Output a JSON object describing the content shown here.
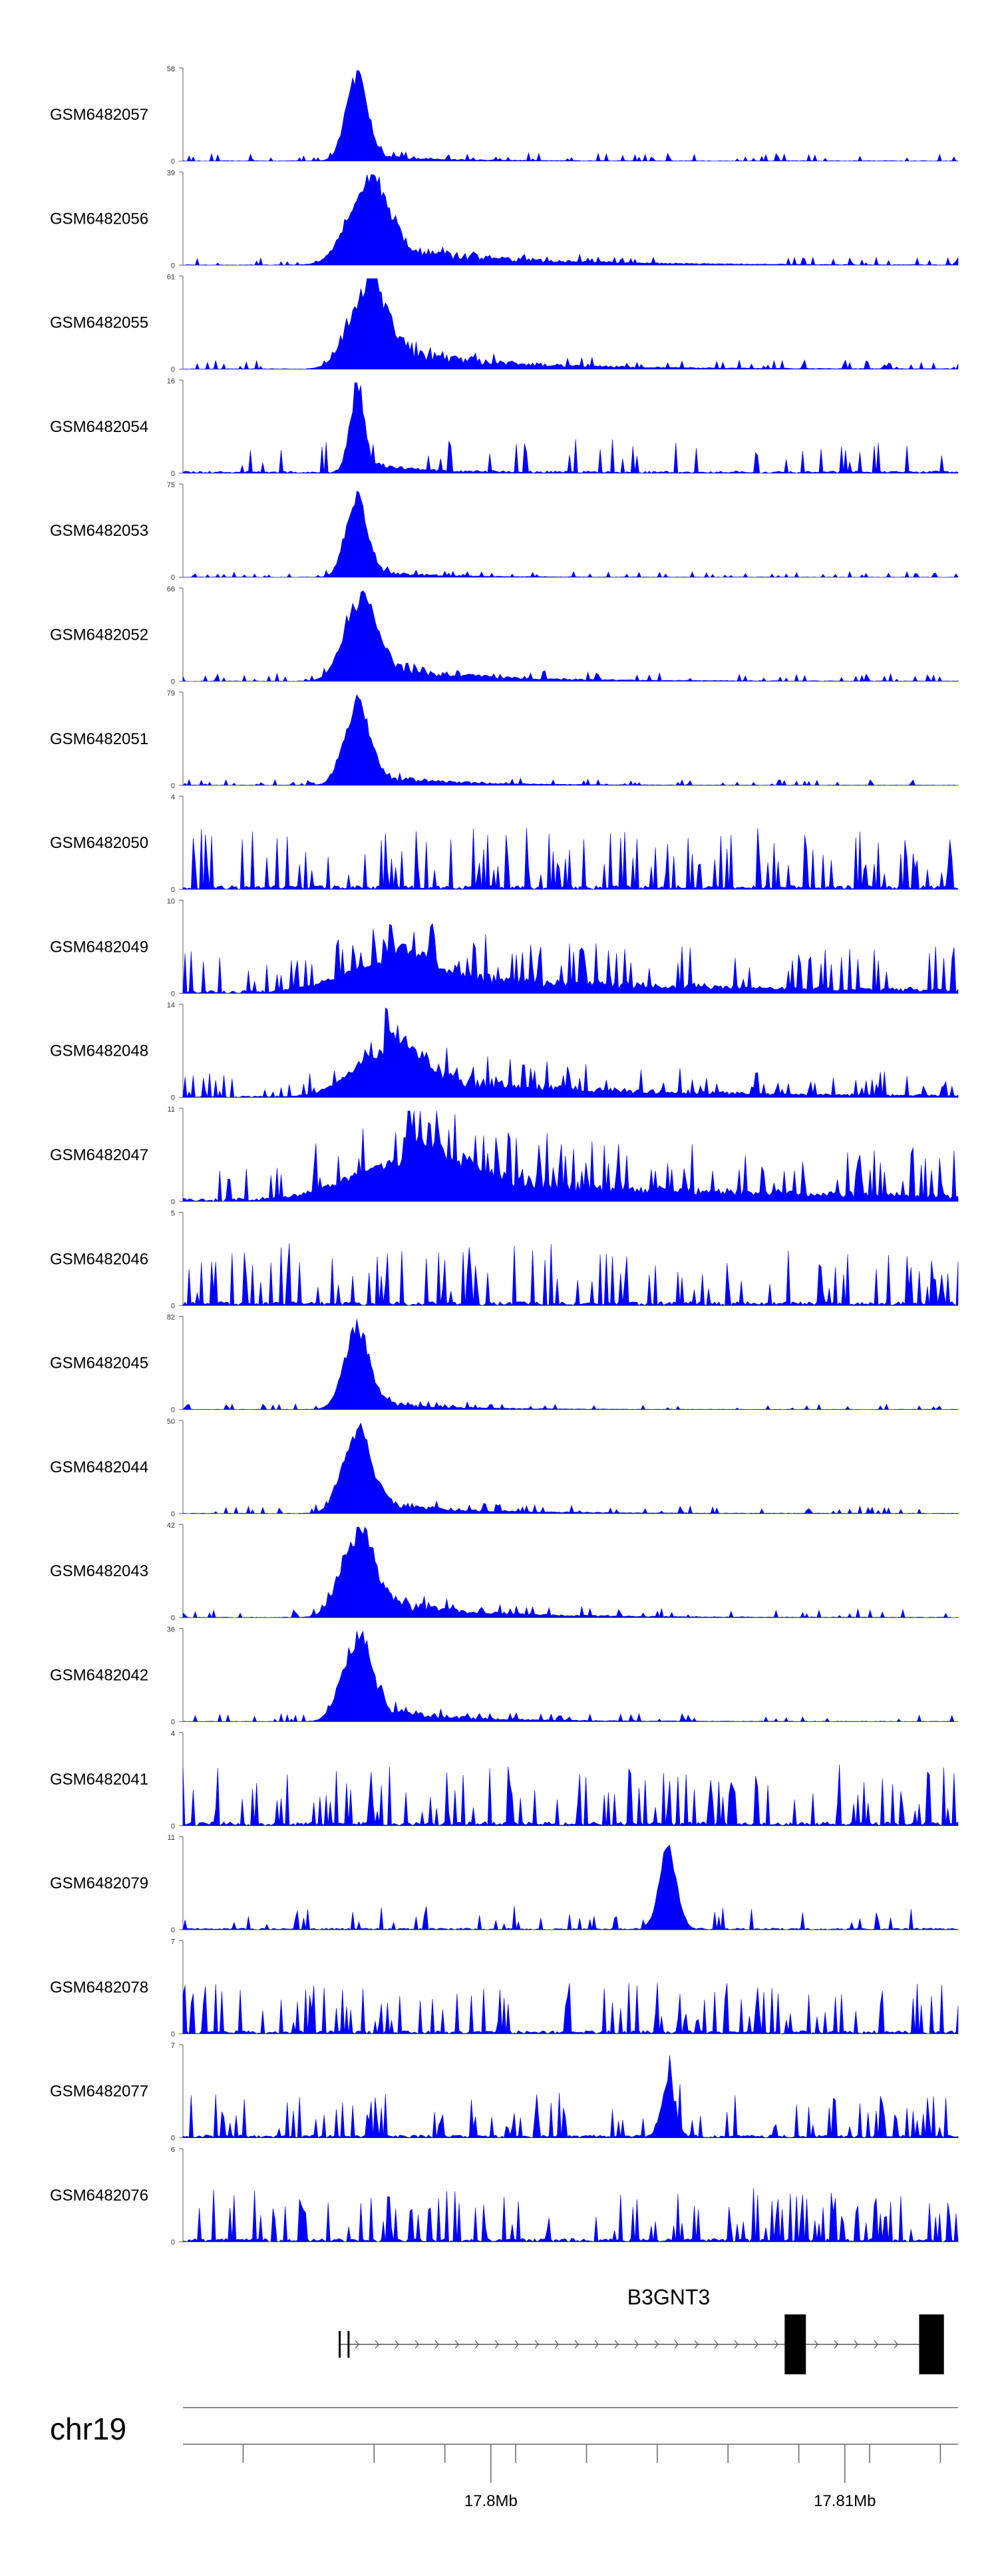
{
  "chart_data": {
    "type": "area",
    "title": "",
    "chromosome": "chr19",
    "series_color": "#0000ff",
    "gene": {
      "name": "B3GNT3",
      "strand": "+",
      "start_mb": 17.7957,
      "end_mb": 17.8121,
      "exons": [
        {
          "start_mb": 17.7957,
          "end_mb": 17.79575
        },
        {
          "start_mb": 17.79595,
          "end_mb": 17.796
        },
        {
          "start_mb": 17.8083,
          "end_mb": 17.8089
        },
        {
          "start_mb": 17.8121,
          "end_mb": 17.8128
        }
      ]
    },
    "xaxis": {
      "range_mb": [
        17.7913,
        17.8132
      ],
      "minor_ticks_mb": [
        17.793,
        17.7967,
        17.7987,
        17.8007,
        17.8027,
        17.8047,
        17.8067,
        17.8087,
        17.8107,
        17.8127
      ],
      "major_ticks": [
        {
          "value_mb": 17.8,
          "label": "17.8Mb"
        },
        {
          "value_mb": 17.81,
          "label": "17.81Mb"
        }
      ]
    },
    "tracks": [
      {
        "name": "GSM6482057",
        "ymax": 58,
        "profile": "peak",
        "peak_mb": 17.7962,
        "peak_w": 0.0003,
        "peak_frac": 1.0,
        "bg": 0.07,
        "tail": 0.1,
        "seed": 57
      },
      {
        "name": "GSM6482056",
        "ymax": 39,
        "profile": "peak",
        "peak_mb": 17.7965,
        "peak_w": 0.00055,
        "peak_frac": 0.95,
        "bg": 0.07,
        "tail": 0.3,
        "seed": 56
      },
      {
        "name": "GSM6482055",
        "ymax": 61,
        "profile": "peak",
        "peak_mb": 17.7965,
        "peak_w": 0.0005,
        "peak_frac": 0.95,
        "bg": 0.08,
        "tail": 0.35,
        "seed": 55
      },
      {
        "name": "GSM6482054",
        "ymax": 16,
        "profile": "sparse-peak",
        "peak_mb": 17.7962,
        "peak_w": 0.0002,
        "peak_frac": 0.95,
        "bg": 0.3,
        "tail": 0.2,
        "seed": 54
      },
      {
        "name": "GSM6482053",
        "ymax": 75,
        "profile": "peak",
        "peak_mb": 17.7962,
        "peak_w": 0.0003,
        "peak_frac": 0.95,
        "bg": 0.05,
        "tail": 0.1,
        "seed": 53
      },
      {
        "name": "GSM6482052",
        "ymax": 66,
        "profile": "peak",
        "peak_mb": 17.7963,
        "peak_w": 0.00045,
        "peak_frac": 0.95,
        "bg": 0.07,
        "tail": 0.25,
        "seed": 52
      },
      {
        "name": "GSM6482051",
        "ymax": 79,
        "profile": "peak",
        "peak_mb": 17.7962,
        "peak_w": 0.00035,
        "peak_frac": 0.95,
        "bg": 0.05,
        "tail": 0.18,
        "seed": 51
      },
      {
        "name": "GSM6482050",
        "ymax": 4,
        "profile": "spiky",
        "peak_mb": 17.7962,
        "peak_w": 0.0004,
        "peak_frac": 0.0,
        "bg": 0.55,
        "tail": 0.0,
        "seed": 50
      },
      {
        "name": "GSM6482049",
        "ymax": 10,
        "profile": "spiky",
        "peak_mb": 17.797,
        "peak_w": 0.0012,
        "peak_frac": 0.35,
        "bg": 0.4,
        "tail": 0.3,
        "seed": 49
      },
      {
        "name": "GSM6482048",
        "ymax": 14,
        "profile": "spiky",
        "peak_mb": 17.797,
        "peak_w": 0.0009,
        "peak_frac": 0.55,
        "bg": 0.22,
        "tail": 0.35,
        "seed": 48
      },
      {
        "name": "GSM6482047",
        "ymax": 11,
        "profile": "spiky",
        "peak_mb": 17.7975,
        "peak_w": 0.0015,
        "peak_frac": 0.45,
        "bg": 0.45,
        "tail": 0.35,
        "seed": 47
      },
      {
        "name": "GSM6482046",
        "ymax": 5,
        "profile": "spiky",
        "peak_mb": 17.7962,
        "peak_w": 0.0004,
        "peak_frac": 0.0,
        "bg": 0.55,
        "tail": 0.0,
        "seed": 46
      },
      {
        "name": "GSM6482045",
        "ymax": 82,
        "profile": "peak",
        "peak_mb": 17.7962,
        "peak_w": 0.00035,
        "peak_frac": 0.95,
        "bg": 0.05,
        "tail": 0.12,
        "seed": 45
      },
      {
        "name": "GSM6482044",
        "ymax": 50,
        "profile": "peak",
        "peak_mb": 17.7962,
        "peak_w": 0.0004,
        "peak_frac": 0.95,
        "bg": 0.07,
        "tail": 0.2,
        "seed": 44
      },
      {
        "name": "GSM6482043",
        "ymax": 42,
        "profile": "peak",
        "peak_mb": 17.7962,
        "peak_w": 0.00045,
        "peak_frac": 0.95,
        "bg": 0.08,
        "tail": 0.3,
        "seed": 43
      },
      {
        "name": "GSM6482042",
        "ymax": 36,
        "profile": "peak",
        "peak_mb": 17.7962,
        "peak_w": 0.0004,
        "peak_frac": 0.95,
        "bg": 0.07,
        "tail": 0.22,
        "seed": 42
      },
      {
        "name": "GSM6482041",
        "ymax": 4,
        "profile": "spiky",
        "peak_mb": 17.7962,
        "peak_w": 0.0004,
        "peak_frac": 0.0,
        "bg": 0.55,
        "tail": 0.0,
        "seed": 41
      },
      {
        "name": "GSM6482079",
        "ymax": 11,
        "profile": "sparse-peak",
        "peak_mb": 17.805,
        "peak_w": 0.00025,
        "peak_frac": 0.95,
        "bg": 0.22,
        "tail": 0.0,
        "seed": 79
      },
      {
        "name": "GSM6482078",
        "ymax": 7,
        "profile": "spiky",
        "peak_mb": 17.7962,
        "peak_w": 0.0004,
        "peak_frac": 0.0,
        "bg": 0.45,
        "tail": 0.0,
        "seed": 78
      },
      {
        "name": "GSM6482077",
        "ymax": 7,
        "profile": "spiky",
        "peak_mb": 17.805,
        "peak_w": 0.0002,
        "peak_frac": 0.6,
        "bg": 0.4,
        "tail": 0.0,
        "seed": 77
      },
      {
        "name": "GSM6482076",
        "ymax": 6,
        "profile": "spiky",
        "peak_mb": 17.7962,
        "peak_w": 0.0004,
        "peak_frac": 0.0,
        "bg": 0.48,
        "tail": 0.0,
        "seed": 76
      }
    ]
  }
}
